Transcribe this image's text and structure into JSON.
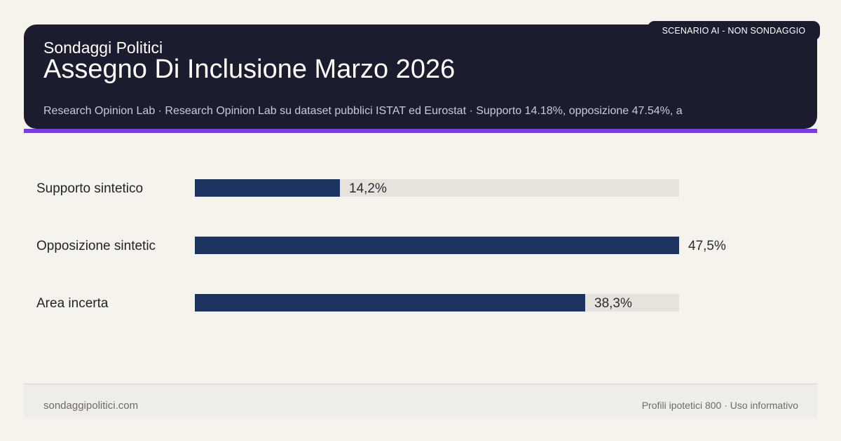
{
  "header": {
    "badge": "SCENARIO AI - NON SONDAGGIO",
    "brand": "Sondaggi Politici",
    "title": "Assegno Di Inclusione Marzo 2026",
    "source": "Research Opinion Lab · Research Opinion Lab su dataset pubblici ISTAT ed Eurostat · Supporto 14.18%, opposizione 47.54%, a"
  },
  "chart_data": {
    "type": "bar",
    "orientation": "horizontal",
    "categories": [
      "Supporto sintetico",
      "Opposizione sintetic",
      "Area incerta"
    ],
    "values": [
      14.2,
      47.5,
      38.3
    ],
    "value_labels": [
      "14,2%",
      "47,5%",
      "38,3%"
    ],
    "xlim": [
      0,
      47.5
    ],
    "grid": false,
    "colors": {
      "bar": "#1d3461",
      "track": "#e7e2dc"
    }
  },
  "footer": {
    "site": "sondaggipolitici.com",
    "note": "Profili ipotetici 800 · Uso informativo"
  },
  "colors": {
    "header_bg": "#1b1c2e",
    "accent": "#7c3aed",
    "page_bg": "#f6f2ec"
  }
}
